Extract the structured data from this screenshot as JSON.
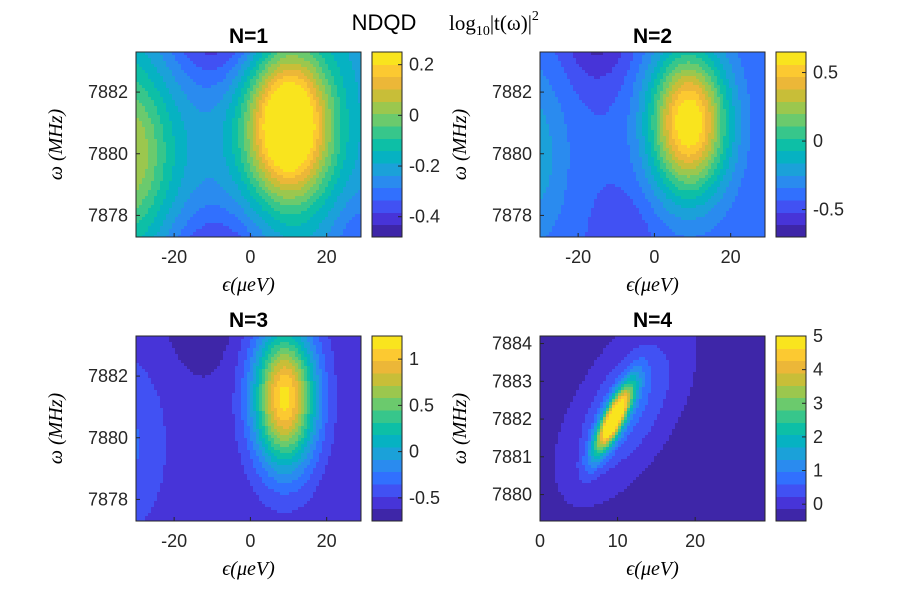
{
  "figure": {
    "title": "NDQD",
    "formula": "log10|t(ω)|^2",
    "formula_parts": {
      "log": "log",
      "sub": "10",
      "body": "|t(ω)|",
      "sup": "2"
    }
  },
  "colormap": [
    "#3e26a8",
    "#4734d8",
    "#4151f3",
    "#3170fe",
    "#2a8bef",
    "#1ba1d9",
    "#06b2c2",
    "#0dbfa6",
    "#37c68b",
    "#6bca6d",
    "#9bc74e",
    "#c8be38",
    "#ecb738",
    "#fcc931",
    "#f9e41e"
  ],
  "chart_data": [
    {
      "type": "contour",
      "title": "N=1",
      "xlabel": "ϵ(μeV)",
      "ylabel": "ω (MHz)",
      "xlim": [
        -30,
        29
      ],
      "ylim": [
        7877.3,
        7883.3
      ],
      "xticks": [
        -20,
        0,
        20
      ],
      "yticks": [
        7878,
        7880,
        7882
      ],
      "clim": [
        -0.48,
        0.25
      ],
      "colorbar_ticks": [
        -0.4,
        -0.2,
        0,
        0.2
      ],
      "colorbar_tick_labels": [
        "-0.4",
        "-0.2",
        "0",
        "0.2"
      ],
      "field": {
        "base": -0.22,
        "bumps": [
          {
            "x": 10,
            "y": 7880.9,
            "sx": 11,
            "sy": 2.4,
            "amp": 0.62
          },
          {
            "x": -33,
            "y": 7880.0,
            "sx": 12,
            "sy": 2.8,
            "amp": 0.3
          }
        ],
        "dips": [
          {
            "x": -9,
            "y": 7885.0,
            "sx": 14,
            "sy": 2.6,
            "amp": 0.28
          },
          {
            "x": -9,
            "y": 7875.5,
            "sx": 14,
            "sy": 2.6,
            "amp": 0.26
          },
          {
            "x": 30,
            "y": 7877.0,
            "sx": 10,
            "sy": 1.6,
            "amp": 0.12
          }
        ]
      }
    },
    {
      "type": "contour",
      "title": "N=2",
      "xlabel": "ϵ(μeV)",
      "ylabel": "ω (MHz)",
      "xlim": [
        -30,
        29
      ],
      "ylim": [
        7877.3,
        7883.3
      ],
      "xticks": [
        -20,
        0,
        20
      ],
      "yticks": [
        7878,
        7880,
        7882
      ],
      "clim": [
        -0.7,
        0.65
      ],
      "colorbar_ticks": [
        -0.5,
        0,
        0.5
      ],
      "colorbar_tick_labels": [
        "-0.5",
        "0",
        "0.5"
      ],
      "field": {
        "base": -0.42,
        "bumps": [
          {
            "x": 9,
            "y": 7881.0,
            "sx": 10,
            "sy": 2.3,
            "amp": 1.1
          },
          {
            "x": -33,
            "y": 7880.0,
            "sx": 10,
            "sy": 2.8,
            "amp": 0.25
          }
        ],
        "dips": [
          {
            "x": -15,
            "y": 7884.5,
            "sx": 9,
            "sy": 2.0,
            "amp": 0.3
          },
          {
            "x": -8,
            "y": 7877.2,
            "sx": 8,
            "sy": 1.5,
            "amp": 0.1
          }
        ]
      }
    },
    {
      "type": "contour",
      "title": "N=3",
      "xlabel": "ϵ(μeV)",
      "ylabel": "ω (MHz)",
      "xlim": [
        -30,
        29
      ],
      "ylim": [
        7877.3,
        7883.3
      ],
      "xticks": [
        -20,
        0,
        20
      ],
      "yticks": [
        7878,
        7880,
        7882
      ],
      "clim": [
        -0.75,
        1.25
      ],
      "colorbar_ticks": [
        -0.5,
        0,
        0.5,
        1
      ],
      "colorbar_tick_labels": [
        "-0.5",
        "0",
        "0.5",
        "1"
      ],
      "field": {
        "base": -0.58,
        "bumps": [
          {
            "x": 9,
            "y": 7881.3,
            "sx": 8,
            "sy": 2.2,
            "amp": 1.75
          },
          {
            "x": -32,
            "y": 7879.8,
            "sx": 10,
            "sy": 2.8,
            "amp": 0.25
          }
        ],
        "dips": [
          {
            "x": -13,
            "y": 7884.5,
            "sx": 9,
            "sy": 2.0,
            "amp": 0.2
          }
        ]
      }
    },
    {
      "type": "contour",
      "title": "N=4",
      "xlabel": "ϵ(μeV)",
      "ylabel": "ω (MHz)",
      "xlim": [
        0,
        29
      ],
      "ylim": [
        7879.3,
        7884.2
      ],
      "xticks": [
        0,
        10,
        20
      ],
      "yticks": [
        7880,
        7881,
        7882,
        7883,
        7884
      ],
      "clim": [
        -0.5,
        5
      ],
      "colorbar_ticks": [
        0,
        1,
        2,
        3,
        4,
        5
      ],
      "colorbar_tick_labels": [
        "0",
        "1",
        "2",
        "3",
        "4",
        "5"
      ],
      "field": {
        "base": -0.3,
        "ridges": [
          {
            "x": 9.5,
            "y": 7882.0,
            "dxdy": 2.2,
            "sx": 1.4,
            "sy": 0.9,
            "amp": 5.5
          },
          {
            "x": 11,
            "y": 7882.3,
            "dxdy": 2.0,
            "sx": 5.5,
            "sy": 1.9,
            "amp": 1.1
          }
        ],
        "dips": [
          {
            "x": 26,
            "y": 7879.4,
            "sx": 7,
            "sy": 0.55,
            "amp": 0.3
          },
          {
            "x": 1,
            "y": 7884.3,
            "sx": 5,
            "sy": 1.5,
            "amp": 0.15
          }
        ]
      }
    }
  ]
}
